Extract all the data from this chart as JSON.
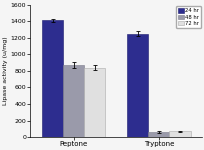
{
  "categories": [
    "Peptone",
    "Tryptone"
  ],
  "times": [
    "24 hr",
    "48 hr",
    "72 hr"
  ],
  "values": [
    [
      1410,
      870,
      840
    ],
    [
      1250,
      60,
      70
    ]
  ],
  "errors": [
    [
      20,
      35,
      30
    ],
    [
      30,
      8,
      8
    ]
  ],
  "bar_colors": [
    "#2d2d8f",
    "#9a9aaa",
    "#e0e0e0"
  ],
  "bar_edgecolors": [
    "#1a1a6e",
    "#7a7a8a",
    "#aaaaaa"
  ],
  "ylabel": "Lipase activity (u/mg)",
  "ylim": [
    0,
    1600
  ],
  "yticks": [
    0,
    200,
    400,
    600,
    800,
    1000,
    1200,
    1400,
    1600
  ],
  "legend_labels": [
    "24 hr",
    "48 hr",
    "72 hr"
  ],
  "background_color": "#f5f5f5",
  "bar_width": 0.18,
  "group_centers": [
    0.32,
    1.05
  ]
}
